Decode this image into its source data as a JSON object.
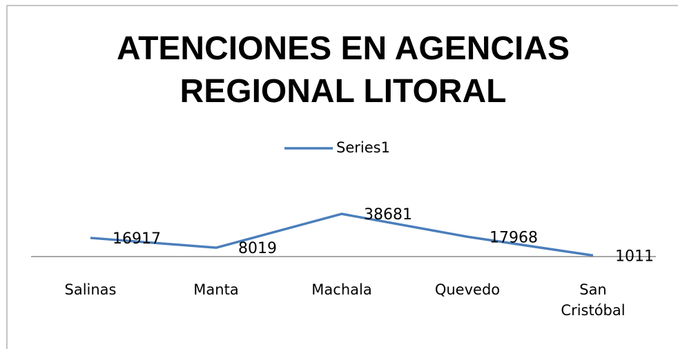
{
  "chart_data": {
    "type": "line",
    "title": "ATENCIONES EN AGENCIAS REGIONAL LITORAL",
    "categories": [
      "Salinas",
      "Manta",
      "Machala",
      "Quevedo",
      "San Cristóbal"
    ],
    "series": [
      {
        "name": "Series1",
        "color": "#4a7ebb",
        "values": [
          16917,
          8019,
          38681,
          17968,
          1011
        ]
      }
    ],
    "ylim": [
      0,
      80000
    ],
    "legend": "top",
    "data_labels": true
  }
}
